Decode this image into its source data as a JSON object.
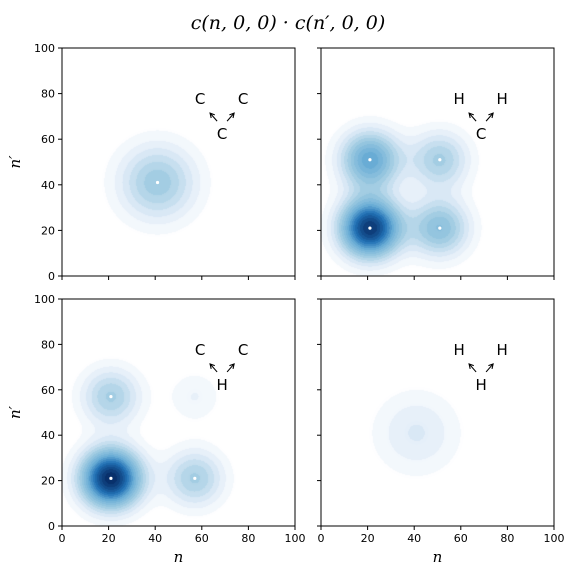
{
  "figure": {
    "title": "c(n, 0, 0) · c(n′, 0, 0)",
    "xlabel": "n",
    "ylabel": "n′"
  },
  "chart_data": [
    {
      "type": "heatmap",
      "panel": "top-left",
      "xlim": [
        0,
        100
      ],
      "ylim": [
        0,
        100
      ],
      "xticks": [
        0,
        20,
        40,
        60,
        80,
        100
      ],
      "yticks": [
        0,
        20,
        40,
        60,
        80,
        100
      ],
      "annotation": {
        "left": "C",
        "right": "C",
        "bottom": "C"
      },
      "peaks": [
        {
          "x": 41,
          "y": 41,
          "amplitude": 0.38,
          "width": 12
        }
      ]
    },
    {
      "type": "heatmap",
      "panel": "top-right",
      "xlim": [
        0,
        100
      ],
      "ylim": [
        0,
        100
      ],
      "xticks": [
        0,
        20,
        40,
        60,
        80,
        100
      ],
      "yticks": [
        0,
        20,
        40,
        60,
        80,
        100
      ],
      "annotation": {
        "left": "H",
        "right": "H",
        "bottom": "C"
      },
      "peaks": [
        {
          "x": 21,
          "y": 21,
          "amplitude": 1.0,
          "width": 9
        },
        {
          "x": 21,
          "y": 51,
          "amplitude": 0.6,
          "width": 9
        },
        {
          "x": 51,
          "y": 21,
          "amplitude": 0.45,
          "width": 9
        },
        {
          "x": 51,
          "y": 51,
          "amplitude": 0.35,
          "width": 9
        }
      ]
    },
    {
      "type": "heatmap",
      "panel": "bottom-left",
      "xlim": [
        0,
        100
      ],
      "ylim": [
        0,
        100
      ],
      "xticks": [
        0,
        20,
        40,
        60,
        80,
        100
      ],
      "yticks": [
        0,
        20,
        40,
        60,
        80,
        100
      ],
      "annotation": {
        "left": "C",
        "right": "C",
        "bottom": "H"
      },
      "peaks": [
        {
          "x": 21,
          "y": 21,
          "amplitude": 1.05,
          "width": 9
        },
        {
          "x": 21,
          "y": 57,
          "amplitude": 0.35,
          "width": 9
        },
        {
          "x": 57,
          "y": 21,
          "amplitude": 0.35,
          "width": 9
        },
        {
          "x": 57,
          "y": 57,
          "amplitude": 0.12,
          "width": 8
        }
      ]
    },
    {
      "type": "heatmap",
      "panel": "bottom-right",
      "xlim": [
        0,
        100
      ],
      "ylim": [
        0,
        100
      ],
      "xticks": [
        0,
        20,
        40,
        60,
        80,
        100
      ],
      "yticks": [
        0,
        20,
        40,
        60,
        80,
        100
      ],
      "annotation": {
        "left": "H",
        "right": "H",
        "bottom": "H"
      },
      "peaks": [
        {
          "x": 41,
          "y": 41,
          "amplitude": 0.18,
          "width": 13
        }
      ]
    }
  ],
  "colors": {
    "colormap": "Blues",
    "low": "#ffffff",
    "mid": "#6baed6",
    "high": "#08306b"
  }
}
